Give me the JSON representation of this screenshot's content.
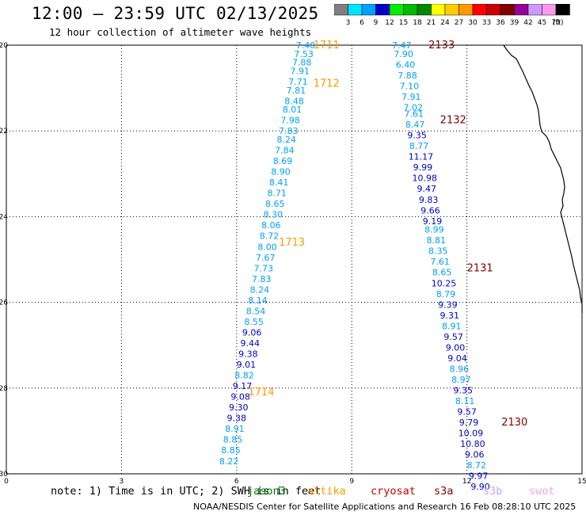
{
  "header": {
    "title": "12:00 — 23:59 UTC 02/13/2025",
    "subtitle": "12 hour collection of altimeter wave heights"
  },
  "legend": {
    "unit": "(ft)",
    "bins": [
      {
        "label": "3",
        "color": "#7f7f7f"
      },
      {
        "label": "6",
        "color": "#00e5ff"
      },
      {
        "label": "9",
        "color": "#00a0ff"
      },
      {
        "label": "12",
        "color": "#0000cc"
      },
      {
        "label": "15",
        "color": "#00ee00"
      },
      {
        "label": "18",
        "color": "#00bb00"
      },
      {
        "label": "21",
        "color": "#008800"
      },
      {
        "label": "24",
        "color": "#ffff00"
      },
      {
        "label": "27",
        "color": "#ffcc00"
      },
      {
        "label": "30",
        "color": "#ff9900"
      },
      {
        "label": "33",
        "color": "#ff0000"
      },
      {
        "label": "36",
        "color": "#cc0000"
      },
      {
        "label": "39",
        "color": "#800000"
      },
      {
        "label": "42",
        "color": "#990099"
      },
      {
        "label": "45",
        "color": "#cc99ff"
      },
      {
        "label": "70",
        "color": "#ff99ee"
      },
      {
        "label": "",
        "color": "#000000"
      }
    ]
  },
  "axes": {
    "x_ticks": [
      "0",
      "3",
      "6",
      "9",
      "12",
      "15"
    ],
    "y_ticks": [
      "-20",
      "-22",
      "-24",
      "-26",
      "-28",
      "-30"
    ],
    "x_range": [
      0,
      15
    ],
    "y_range": [
      -20,
      -30
    ]
  },
  "tracks": [
    {
      "passes": [
        {
          "label": "1711",
          "lat": -20.0,
          "x": 8.0
        },
        {
          "label": "1712",
          "lat": -20.9,
          "x": 8.0
        },
        {
          "label": "1713",
          "lat": -24.6,
          "x": 7.1
        },
        {
          "label": "1714",
          "lat": -28.1,
          "x": 6.3
        }
      ],
      "points": [
        {
          "lat": -20.0,
          "lon": 7.8,
          "value": "7.40"
        },
        {
          "lat": -20.2,
          "lon": 7.75,
          "value": "7.53"
        },
        {
          "lat": -20.4,
          "lon": 7.7,
          "value": "7.88"
        },
        {
          "lat": -20.6,
          "lon": 7.65,
          "value": "7.91"
        },
        {
          "lat": -20.85,
          "lon": 7.6,
          "value": "7.71"
        },
        {
          "lat": -21.05,
          "lon": 7.55,
          "value": "7.81"
        },
        {
          "lat": -21.3,
          "lon": 7.5,
          "value": "8.48"
        },
        {
          "lat": -21.5,
          "lon": 7.45,
          "value": "8.01"
        },
        {
          "lat": -21.75,
          "lon": 7.4,
          "value": "7.98"
        },
        {
          "lat": -22.0,
          "lon": 7.35,
          "value": "7.83"
        },
        {
          "lat": -22.2,
          "lon": 7.3,
          "value": "8.24"
        },
        {
          "lat": -22.45,
          "lon": 7.25,
          "value": "7.84"
        },
        {
          "lat": -22.7,
          "lon": 7.2,
          "value": "8.69"
        },
        {
          "lat": -22.95,
          "lon": 7.15,
          "value": "8.90"
        },
        {
          "lat": -23.2,
          "lon": 7.1,
          "value": "8.41"
        },
        {
          "lat": -23.45,
          "lon": 7.05,
          "value": "8.71"
        },
        {
          "lat": -23.7,
          "lon": 7.0,
          "value": "8.65"
        },
        {
          "lat": -23.95,
          "lon": 6.95,
          "value": "8.30"
        },
        {
          "lat": -24.2,
          "lon": 6.9,
          "value": "8.06"
        },
        {
          "lat": -24.45,
          "lon": 6.85,
          "value": "8.72"
        },
        {
          "lat": -24.7,
          "lon": 6.8,
          "value": "8.00"
        },
        {
          "lat": -24.95,
          "lon": 6.75,
          "value": "7.67"
        },
        {
          "lat": -25.2,
          "lon": 6.7,
          "value": "7.73"
        },
        {
          "lat": -25.45,
          "lon": 6.65,
          "value": "7.83"
        },
        {
          "lat": -25.7,
          "lon": 6.6,
          "value": "8.24"
        },
        {
          "lat": -25.95,
          "lon": 6.55,
          "value": "8.14"
        },
        {
          "lat": -26.2,
          "lon": 6.5,
          "value": "8.54"
        },
        {
          "lat": -26.45,
          "lon": 6.45,
          "value": "8.55"
        },
        {
          "lat": -26.7,
          "lon": 6.4,
          "value": "9.06"
        },
        {
          "lat": -26.95,
          "lon": 6.35,
          "value": "9.44"
        },
        {
          "lat": -27.2,
          "lon": 6.3,
          "value": "9.38"
        },
        {
          "lat": -27.45,
          "lon": 6.25,
          "value": "9.01"
        },
        {
          "lat": -27.7,
          "lon": 6.2,
          "value": "8.82"
        },
        {
          "lat": -27.95,
          "lon": 6.15,
          "value": "9.17"
        },
        {
          "lat": -28.2,
          "lon": 6.1,
          "value": "9.08"
        },
        {
          "lat": -28.45,
          "lon": 6.05,
          "value": "9.30"
        },
        {
          "lat": -28.7,
          "lon": 6.0,
          "value": "9.38"
        },
        {
          "lat": -28.95,
          "lon": 5.95,
          "value": "8.91"
        },
        {
          "lat": -29.2,
          "lon": 5.9,
          "value": "8.85"
        },
        {
          "lat": -29.45,
          "lon": 5.85,
          "value": "8.85"
        },
        {
          "lat": -29.7,
          "lon": 5.8,
          "value": "8.22"
        }
      ]
    },
    {
      "passes": [
        {
          "label": "2133",
          "lat": -20.0,
          "x": 11.0
        },
        {
          "label": "2132",
          "lat": -21.75,
          "x": 11.3
        },
        {
          "label": "2131",
          "lat": -25.2,
          "x": 12.0
        },
        {
          "label": "2130",
          "lat": -28.8,
          "x": 12.9
        }
      ],
      "points": [
        {
          "lat": -20.0,
          "lon": 10.3,
          "value": "7.47"
        },
        {
          "lat": -20.2,
          "lon": 10.35,
          "value": "7.90"
        },
        {
          "lat": -20.45,
          "lon": 10.4,
          "value": "6.40"
        },
        {
          "lat": -20.7,
          "lon": 10.45,
          "value": "7.88"
        },
        {
          "lat": -20.95,
          "lon": 10.5,
          "value": "7.10"
        },
        {
          "lat": -21.2,
          "lon": 10.55,
          "value": "7.91"
        },
        {
          "lat": -21.45,
          "lon": 10.6,
          "value": "7.02"
        },
        {
          "lat": -21.6,
          "lon": 10.62,
          "value": "7.61"
        },
        {
          "lat": -21.85,
          "lon": 10.65,
          "value": "8.47"
        },
        {
          "lat": -22.1,
          "lon": 10.7,
          "value": "9.35"
        },
        {
          "lat": -22.35,
          "lon": 10.75,
          "value": "8.77"
        },
        {
          "lat": -22.6,
          "lon": 10.8,
          "value": "11.17"
        },
        {
          "lat": -22.85,
          "lon": 10.85,
          "value": "9.99"
        },
        {
          "lat": -23.1,
          "lon": 10.9,
          "value": "10.98"
        },
        {
          "lat": -23.35,
          "lon": 10.95,
          "value": "9.47"
        },
        {
          "lat": -23.6,
          "lon": 11.0,
          "value": "9.83"
        },
        {
          "lat": -23.85,
          "lon": 11.05,
          "value": "9.66"
        },
        {
          "lat": -24.1,
          "lon": 11.1,
          "value": "9.19"
        },
        {
          "lat": -24.3,
          "lon": 11.15,
          "value": "8.99"
        },
        {
          "lat": -24.55,
          "lon": 11.2,
          "value": "8.81"
        },
        {
          "lat": -24.8,
          "lon": 11.25,
          "value": "8.35"
        },
        {
          "lat": -25.05,
          "lon": 11.3,
          "value": "7.61"
        },
        {
          "lat": -25.3,
          "lon": 11.35,
          "value": "8.65"
        },
        {
          "lat": -25.55,
          "lon": 11.4,
          "value": "10.25"
        },
        {
          "lat": -25.8,
          "lon": 11.45,
          "value": "8.79"
        },
        {
          "lat": -26.05,
          "lon": 11.5,
          "value": "9.39"
        },
        {
          "lat": -26.3,
          "lon": 11.55,
          "value": "9.31"
        },
        {
          "lat": -26.55,
          "lon": 11.6,
          "value": "8.91"
        },
        {
          "lat": -26.8,
          "lon": 11.65,
          "value": "9.57"
        },
        {
          "lat": -27.05,
          "lon": 11.7,
          "value": "9.00"
        },
        {
          "lat": -27.3,
          "lon": 11.75,
          "value": "9.04"
        },
        {
          "lat": -27.55,
          "lon": 11.8,
          "value": "8.96"
        },
        {
          "lat": -27.8,
          "lon": 11.85,
          "value": "8.97"
        },
        {
          "lat": -28.05,
          "lon": 11.9,
          "value": "9.35"
        },
        {
          "lat": -28.3,
          "lon": 11.95,
          "value": "8.11"
        },
        {
          "lat": -28.55,
          "lon": 12.0,
          "value": "9.57"
        },
        {
          "lat": -28.8,
          "lon": 12.05,
          "value": "9.79"
        },
        {
          "lat": -29.05,
          "lon": 12.1,
          "value": "10.09"
        },
        {
          "lat": -29.3,
          "lon": 12.15,
          "value": "10.80"
        },
        {
          "lat": -29.55,
          "lon": 12.2,
          "value": "9.06"
        },
        {
          "lat": -29.8,
          "lon": 12.25,
          "value": "8.72"
        },
        {
          "lat": -30.05,
          "lon": 12.3,
          "value": "9.97"
        },
        {
          "lat": -30.3,
          "lon": 12.35,
          "value": "9.90"
        }
      ]
    }
  ],
  "footer": {
    "note": "note: 1) Time is in UTC; 2) SWH is in feet",
    "satellites": [
      {
        "label": "jason3",
        "color": "#007a00"
      },
      {
        "label": "altika",
        "color": "#ff9900"
      },
      {
        "label": "cryosat",
        "color": "#cc0000"
      },
      {
        "label": "s3a",
        "color": "#800000"
      },
      {
        "label": "s3b",
        "color": "#c2a5f2"
      },
      {
        "label": "swot",
        "color": "#f5a3e6"
      }
    ],
    "credit": "NOAA/NESDIS Center for Satellite Applications and Research   16 Feb 08:28:10 UTC 2025"
  },
  "colors": {
    "pass_altika": "#ff9900",
    "pass_s3a": "#800000",
    "value_light": "#00a0ff",
    "value_dark": "#0000cc"
  }
}
